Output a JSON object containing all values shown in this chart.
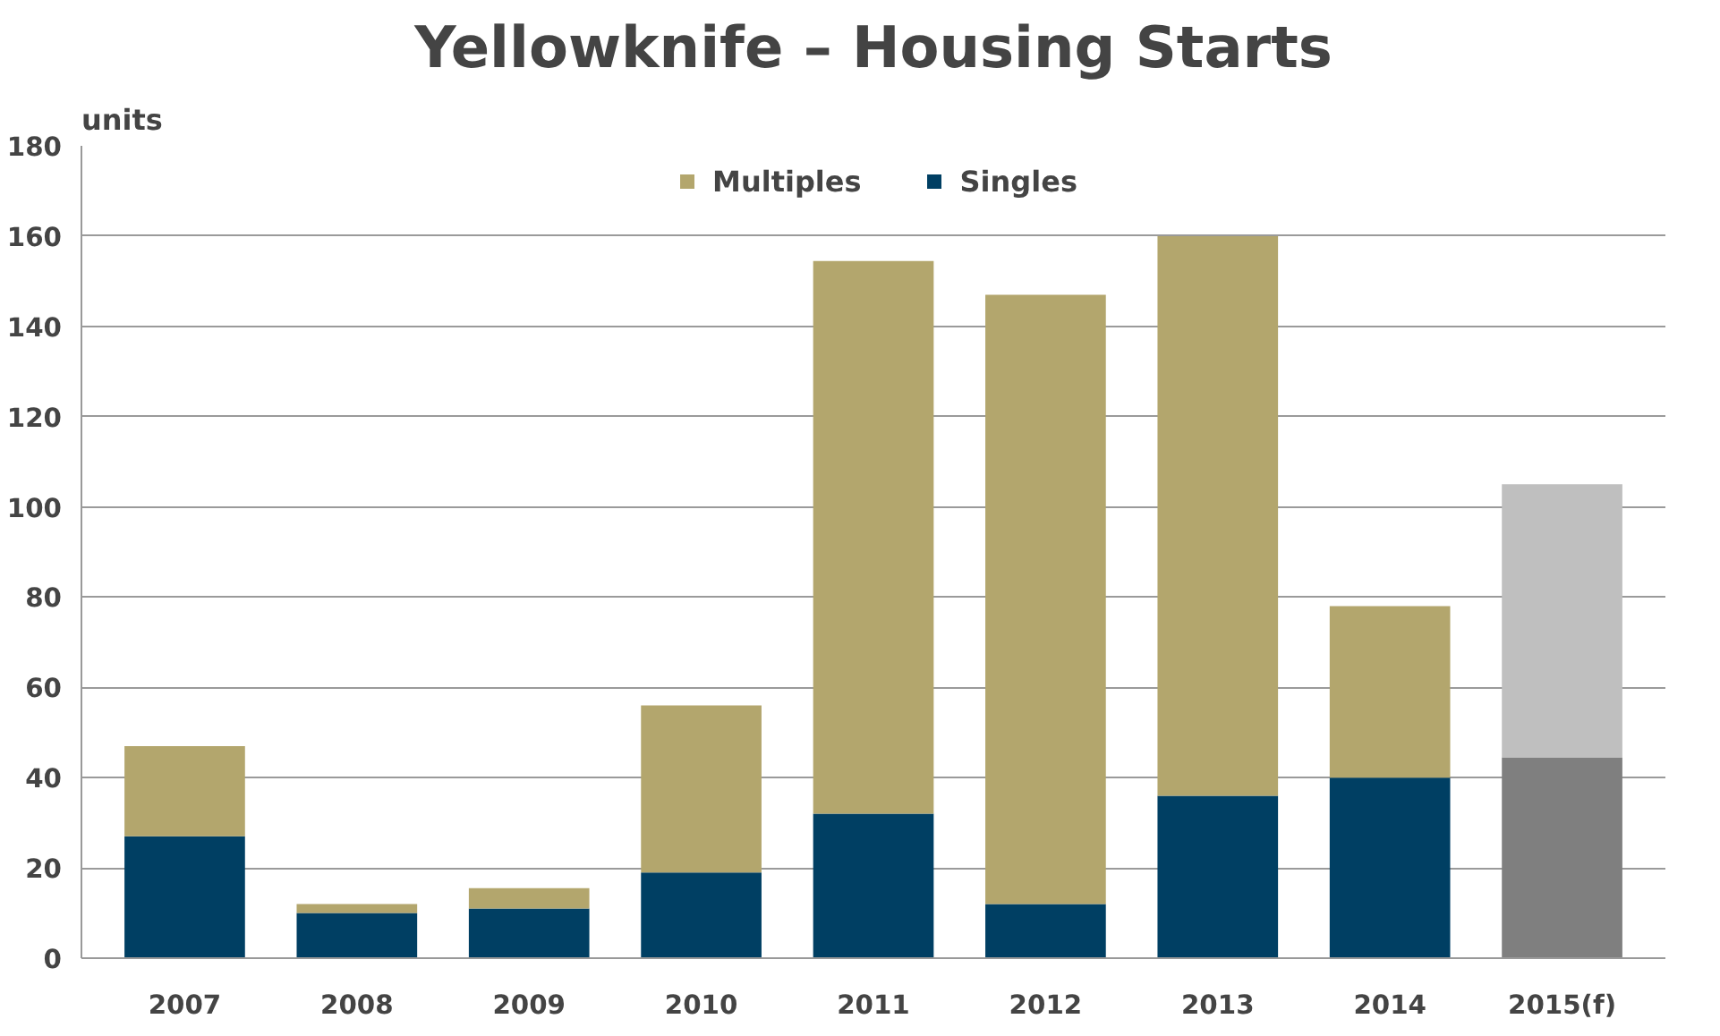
{
  "chart_data": {
    "type": "bar",
    "title": "Yellowknife – Housing Starts",
    "ylabel": "units",
    "stacked": true,
    "categories": [
      "2007",
      "2008",
      "2009",
      "2010",
      "2011",
      "2012",
      "2013",
      "2014",
      "2015(f)"
    ],
    "series": [
      {
        "name": "Singles",
        "color": "#003f63",
        "colors": [
          "#003f63",
          "#003f63",
          "#003f63",
          "#003f63",
          "#003f63",
          "#003f63",
          "#003f63",
          "#003f63",
          "#7f7f7f"
        ],
        "values": [
          27,
          10,
          11,
          19,
          32,
          12,
          36,
          40,
          44.5
        ]
      },
      {
        "name": "Multiples",
        "color": "#b3a66d",
        "colors": [
          "#b3a66d",
          "#b3a66d",
          "#b3a66d",
          "#b3a66d",
          "#b3a66d",
          "#b3a66d",
          "#b3a66d",
          "#b3a66d",
          "#bfbfbf"
        ],
        "values": [
          20,
          2,
          4.5,
          37,
          122.5,
          135,
          124,
          38,
          60.5
        ]
      }
    ],
    "ylim": [
      0,
      180
    ],
    "yticks": [
      0,
      20,
      40,
      60,
      80,
      100,
      120,
      140,
      160,
      180
    ],
    "grid": "y",
    "legend": "top"
  }
}
